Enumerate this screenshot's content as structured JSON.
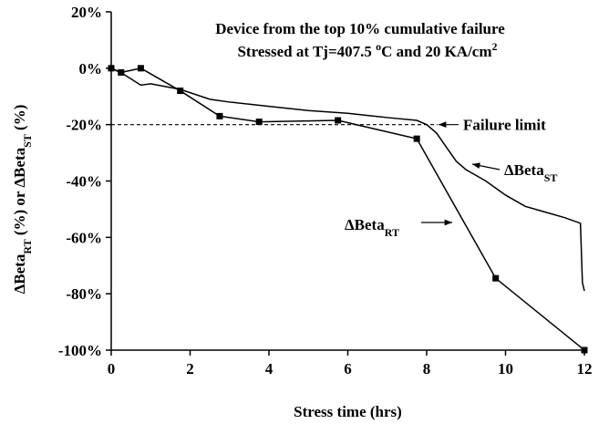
{
  "chart_data": {
    "type": "line",
    "title_lines": [
      [
        {
          "text": "Device from the top 10% cumulative failure"
        }
      ],
      [
        {
          "text": "Stressed at Tj=407.5 "
        },
        {
          "text": "o",
          "sup": true
        },
        {
          "text": "C and 20 KA/cm"
        },
        {
          "text": "2",
          "sup": true
        }
      ]
    ],
    "xlabel": "Stress time (hrs)",
    "ylabel": [
      {
        "text": "ΔBeta"
      },
      {
        "text": "RT",
        "sub": true
      },
      {
        "text": " (%) or ΔBeta"
      },
      {
        "text": "ST",
        "sub": true
      },
      {
        "text": " (%)"
      }
    ],
    "xlim": [
      0,
      12
    ],
    "xticks": [
      0,
      2,
      4,
      6,
      8,
      10,
      12
    ],
    "ylim": [
      -100,
      20
    ],
    "yticks": [
      {
        "value": 20,
        "label": "20%"
      },
      {
        "value": 0,
        "label": "0%"
      },
      {
        "value": -20,
        "label": "-20%"
      },
      {
        "value": -40,
        "label": "-40%"
      },
      {
        "value": -60,
        "label": "-60%"
      },
      {
        "value": -80,
        "label": "-80%"
      },
      {
        "value": -100,
        "label": "-100%"
      }
    ],
    "reference_line": {
      "value": -20,
      "label": "Failure limit"
    },
    "series": [
      {
        "name": "ΔBeta",
        "subscript": "RT",
        "color": "#000000",
        "markers": true,
        "x": [
          0,
          0.25,
          0.75,
          1.75,
          2.75,
          3.75,
          5.75,
          7.75,
          9.75,
          12
        ],
        "values": [
          0,
          -1.5,
          0,
          -8,
          -17,
          -19,
          -18.5,
          -25,
          -74.5,
          -100
        ]
      },
      {
        "name": "ΔBeta",
        "subscript": "ST",
        "color": "#000000",
        "markers": false,
        "x": [
          0,
          0.3,
          0.75,
          1,
          1.75,
          2.5,
          3,
          4,
          5,
          6,
          7,
          7.75,
          8,
          8.25,
          8.5,
          8.75,
          9,
          9.5,
          10,
          10.5,
          11,
          11.5,
          11.9,
          11.95,
          12
        ],
        "values": [
          0,
          -2,
          -6,
          -5.5,
          -7.5,
          -11,
          -12,
          -13.5,
          -15,
          -16,
          -17.5,
          -18.5,
          -20,
          -23,
          -28,
          -33,
          -36,
          -40,
          -45,
          -49,
          -51,
          -53,
          -55,
          -76,
          -79
        ]
      }
    ]
  }
}
